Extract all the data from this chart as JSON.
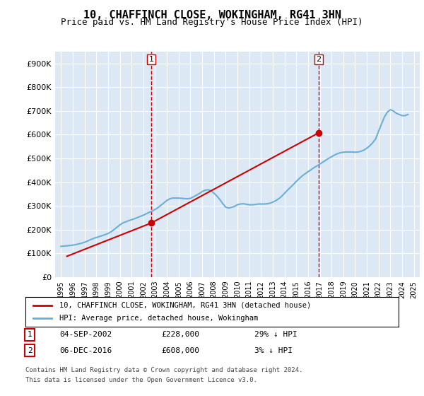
{
  "title": "10, CHAFFINCH CLOSE, WOKINGHAM, RG41 3HN",
  "subtitle": "Price paid vs. HM Land Registry's House Price Index (HPI)",
  "legend_line1": "10, CHAFFINCH CLOSE, WOKINGHAM, RG41 3HN (detached house)",
  "legend_line2": "HPI: Average price, detached house, Wokingham",
  "annotation1": {
    "label": "1",
    "date": "04-SEP-2002",
    "price": "£228,000",
    "pct": "29% ↓ HPI",
    "x_year": 2002.67,
    "y_value": 228000
  },
  "annotation2": {
    "label": "2",
    "date": "06-DEC-2016",
    "price": "£608,000",
    "pct": "3% ↓ HPI",
    "x_year": 2016.92,
    "y_value": 608000
  },
  "footer1": "Contains HM Land Registry data © Crown copyright and database right 2024.",
  "footer2": "This data is licensed under the Open Government Licence v3.0.",
  "hpi_color": "#6baed6",
  "price_color": "#cc0000",
  "vline_color": "#cc0000",
  "background_color": "#ffffff",
  "plot_bg_color": "#dce9f5",
  "grid_color": "#ffffff",
  "ylim": [
    0,
    950000
  ],
  "xlim_start": 1994.5,
  "xlim_end": 2025.5,
  "yticks": [
    0,
    100000,
    200000,
    300000,
    400000,
    500000,
    600000,
    700000,
    800000,
    900000
  ],
  "ytick_labels": [
    "£0",
    "£100K",
    "£200K",
    "£300K",
    "£400K",
    "£500K",
    "£600K",
    "£700K",
    "£800K",
    "£900K"
  ],
  "xticks": [
    1995,
    1996,
    1997,
    1998,
    1999,
    2000,
    2001,
    2002,
    2003,
    2004,
    2005,
    2006,
    2007,
    2008,
    2009,
    2010,
    2011,
    2012,
    2013,
    2014,
    2015,
    2016,
    2017,
    2018,
    2019,
    2020,
    2021,
    2022,
    2023,
    2024,
    2025
  ],
  "hpi_years": [
    1995.0,
    1995.25,
    1995.5,
    1995.75,
    1996.0,
    1996.25,
    1996.5,
    1996.75,
    1997.0,
    1997.25,
    1997.5,
    1997.75,
    1998.0,
    1998.25,
    1998.5,
    1998.75,
    1999.0,
    1999.25,
    1999.5,
    1999.75,
    2000.0,
    2000.25,
    2000.5,
    2000.75,
    2001.0,
    2001.25,
    2001.5,
    2001.75,
    2002.0,
    2002.25,
    2002.5,
    2002.75,
    2003.0,
    2003.25,
    2003.5,
    2003.75,
    2004.0,
    2004.25,
    2004.5,
    2004.75,
    2005.0,
    2005.25,
    2005.5,
    2005.75,
    2006.0,
    2006.25,
    2006.5,
    2006.75,
    2007.0,
    2007.25,
    2007.5,
    2007.75,
    2008.0,
    2008.25,
    2008.5,
    2008.75,
    2009.0,
    2009.25,
    2009.5,
    2009.75,
    2010.0,
    2010.25,
    2010.5,
    2010.75,
    2011.0,
    2011.25,
    2011.5,
    2011.75,
    2012.0,
    2012.25,
    2012.5,
    2012.75,
    2013.0,
    2013.25,
    2013.5,
    2013.75,
    2014.0,
    2014.25,
    2014.5,
    2014.75,
    2015.0,
    2015.25,
    2015.5,
    2015.75,
    2016.0,
    2016.25,
    2016.5,
    2016.75,
    2017.0,
    2017.25,
    2017.5,
    2017.75,
    2018.0,
    2018.25,
    2018.5,
    2018.75,
    2019.0,
    2019.25,
    2019.5,
    2019.75,
    2020.0,
    2020.25,
    2020.5,
    2020.75,
    2021.0,
    2021.25,
    2021.5,
    2021.75,
    2022.0,
    2022.25,
    2022.5,
    2022.75,
    2023.0,
    2023.25,
    2023.5,
    2023.75,
    2024.0,
    2024.25,
    2024.5
  ],
  "hpi_values": [
    130000,
    131000,
    132000,
    133500,
    135000,
    137000,
    140000,
    143000,
    147000,
    152000,
    158000,
    163000,
    167000,
    171000,
    175000,
    179000,
    184000,
    191000,
    200000,
    210000,
    220000,
    228000,
    233000,
    238000,
    242000,
    246000,
    251000,
    256000,
    261000,
    267000,
    273000,
    278000,
    285000,
    293000,
    303000,
    313000,
    323000,
    330000,
    333000,
    333000,
    333000,
    332000,
    331000,
    330000,
    332000,
    338000,
    345000,
    352000,
    360000,
    366000,
    368000,
    364000,
    354000,
    342000,
    327000,
    310000,
    295000,
    291000,
    294000,
    298000,
    305000,
    308000,
    309000,
    307000,
    305000,
    305000,
    306000,
    308000,
    308000,
    308000,
    309000,
    311000,
    316000,
    322000,
    330000,
    340000,
    353000,
    366000,
    378000,
    390000,
    403000,
    415000,
    426000,
    435000,
    444000,
    452000,
    461000,
    468000,
    476000,
    484000,
    492000,
    500000,
    507000,
    514000,
    520000,
    524000,
    526000,
    527000,
    527000,
    527000,
    526000,
    527000,
    530000,
    535000,
    543000,
    553000,
    566000,
    582000,
    615000,
    645000,
    675000,
    695000,
    705000,
    700000,
    690000,
    685000,
    680000,
    680000,
    685000
  ],
  "price_years": [
    1995.5,
    2002.67,
    2016.92
  ],
  "price_values": [
    88000,
    228000,
    608000
  ]
}
